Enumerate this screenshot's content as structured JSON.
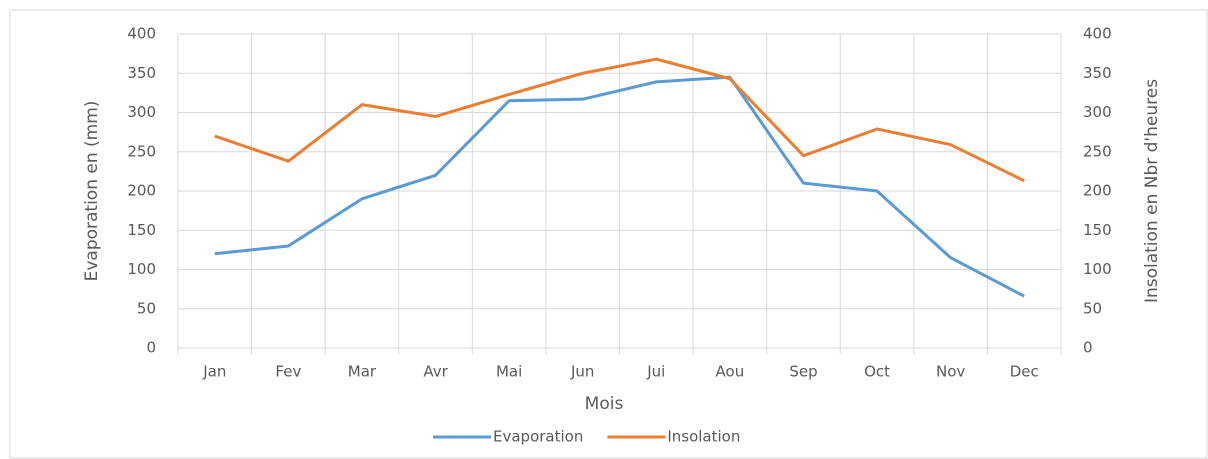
{
  "chart_data": {
    "type": "line",
    "x_label": "Mois",
    "y_label": "Evaporation en (mm)",
    "y2_label": "Insolation en Nbr d'heures",
    "categories": [
      "Jan",
      "Fev",
      "Mar",
      "Avr",
      "Mai",
      "Jun",
      "Jui",
      "Aou",
      "Sep",
      "Oct",
      "Nov",
      "Dec"
    ],
    "series": [
      {
        "name": "Evaporation",
        "color": "#5b9bd5",
        "values": [
          120,
          130,
          190,
          220,
          315,
          317,
          339,
          345,
          210,
          200,
          115,
          66
        ]
      },
      {
        "name": "Insolation",
        "color": "#ed7d31",
        "axis": "y2",
        "values": [
          270,
          238,
          310,
          295,
          323,
          350,
          368,
          343,
          245,
          279,
          259,
          213
        ]
      }
    ],
    "ylim": [
      0,
      400
    ],
    "yticks": [
      0,
      50,
      100,
      150,
      200,
      250,
      300,
      350,
      400
    ],
    "y2lim": [
      0,
      400
    ],
    "y2ticks": [
      0,
      50,
      100,
      150,
      200,
      250,
      300,
      350,
      400
    ],
    "grid": true,
    "legend": "bottom"
  }
}
